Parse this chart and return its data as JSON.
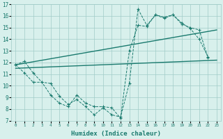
{
  "xlabel": "Humidex (Indice chaleur)",
  "x_ticks": [
    0,
    1,
    2,
    3,
    4,
    5,
    6,
    7,
    8,
    9,
    10,
    11,
    12,
    13,
    14,
    15,
    16,
    17,
    18,
    19,
    20,
    21,
    22,
    23
  ],
  "ylim": [
    7,
    17
  ],
  "xlim": [
    -0.5,
    23.5
  ],
  "y_ticks": [
    7,
    8,
    9,
    10,
    11,
    12,
    13,
    14,
    15,
    16,
    17
  ],
  "line1_y": [
    11.8,
    12.1,
    11.1,
    10.3,
    10.2,
    9.1,
    8.4,
    8.8,
    8.2,
    7.5,
    8.1,
    7.5,
    7.3,
    10.2,
    16.6,
    15.2,
    16.1,
    15.8,
    16.1,
    15.4,
    14.9,
    14.0,
    12.5,
    null
  ],
  "line2_y": [
    11.8,
    11.1,
    10.3,
    10.3,
    9.2,
    8.5,
    8.2,
    9.2,
    8.5,
    8.2,
    8.2,
    8.1,
    7.2,
    13.0,
    15.2,
    15.1,
    16.1,
    15.9,
    16.1,
    15.3,
    15.0,
    14.8,
    12.4,
    null
  ],
  "trend1_x": [
    0,
    23
  ],
  "trend1_y": [
    11.8,
    14.8
  ],
  "trend2_x": [
    0,
    23
  ],
  "trend2_y": [
    11.5,
    12.2
  ],
  "line_color": "#1a7a6e",
  "bg_color": "#d8f0ec",
  "grid_color": "#a0ccc8"
}
